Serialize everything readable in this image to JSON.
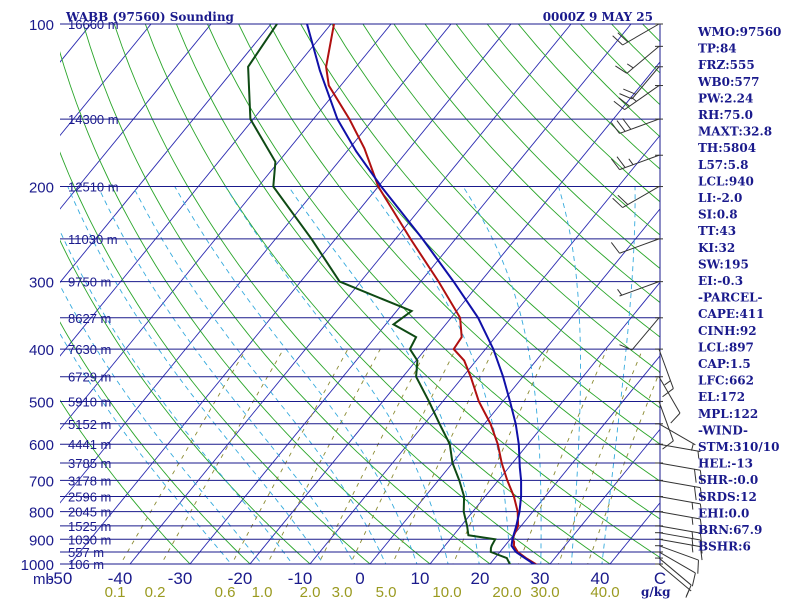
{
  "header": {
    "station": "WABB (97560) Sounding",
    "time": "0000Z  9 MAY 25"
  },
  "units": {
    "pressure": "mb",
    "mixing_ratio": "g/kg"
  },
  "pressure_ticks": [
    "100",
    "200",
    "300",
    "400",
    "500",
    "600",
    "700",
    "800",
    "900",
    "1000"
  ],
  "mixing_labels": [
    "0.1",
    "0.2",
    "0.6",
    "1.0",
    "2.0",
    "3.0",
    "5.0",
    "10.0",
    "20.0",
    "30.0",
    "40.0"
  ],
  "indices": [
    "WMO:97560",
    "TP:84",
    "FRZ:555",
    "WB0:577",
    "PW:2.24",
    "RH:75.0",
    "MAXT:32.8",
    "TH:5804",
    "L57:5.8",
    "LCL:940",
    "LI:-2.0",
    "SI:0.8",
    "TT:43",
    "KI:32",
    "SW:195",
    "EI:-0.3",
    "-PARCEL-",
    "CAPE:411",
    "CINH:92",
    "LCL:897",
    "CAP:1.5",
    "LFC:662",
    "EL:172",
    "MPL:122",
    "-WIND-",
    "STM:310/10",
    "HEL:-13",
    "SHR-:0.0",
    "SRDS:12",
    "EHI:0.0",
    "BRN:67.9",
    "BSHR:6"
  ],
  "chart_data": {
    "type": "line",
    "title": "WABB (97560) Sounding",
    "subtitle": "0000Z  9 MAY 25",
    "xlabel": "",
    "ylabel": "mb",
    "x_scale": "skew-T",
    "y_scale": "log",
    "xlim": [
      -50,
      50
    ],
    "ylim": [
      1000,
      100
    ],
    "x_ticks": [
      "-50",
      "-40",
      "-30",
      "-20",
      "-10",
      "0",
      "10",
      "20",
      "30",
      "40",
      "C"
    ],
    "height_labels": [
      {
        "p": 100,
        "label": "16660 m"
      },
      {
        "p": 150,
        "label": "14300 m"
      },
      {
        "p": 200,
        "label": "12510 m"
      },
      {
        "p": 250,
        "label": "11030 m"
      },
      {
        "p": 300,
        "label": "9750 m"
      },
      {
        "p": 350,
        "label": "8627 m"
      },
      {
        "p": 400,
        "label": "7630 m"
      },
      {
        "p": 450,
        "label": "6729 m"
      },
      {
        "p": 500,
        "label": "5910 m"
      },
      {
        "p": 550,
        "label": "5152 m"
      },
      {
        "p": 600,
        "label": "4441 m"
      },
      {
        "p": 650,
        "label": "3785 m"
      },
      {
        "p": 700,
        "label": "3178 m"
      },
      {
        "p": 750,
        "label": "2596 m"
      },
      {
        "p": 800,
        "label": "2045 m"
      },
      {
        "p": 850,
        "label": "1525 m"
      },
      {
        "p": 900,
        "label": "1030 m"
      },
      {
        "p": 950,
        "label": "557 m"
      },
      {
        "p": 1000,
        "label": "106 m"
      }
    ],
    "series": [
      {
        "id": "temperature",
        "color": "#b01010",
        "points": [
          [
            1008,
            28.4
          ],
          [
            1000,
            27.6
          ],
          [
            975,
            25.2
          ],
          [
            950,
            23.0
          ],
          [
            925,
            21.5
          ],
          [
            910,
            21.0
          ],
          [
            900,
            20.4
          ],
          [
            880,
            20.0
          ],
          [
            850,
            19.5
          ],
          [
            800,
            17.5
          ],
          [
            750,
            14.8
          ],
          [
            700,
            11.5
          ],
          [
            650,
            8.2
          ],
          [
            600,
            5.0
          ],
          [
            550,
            1.0
          ],
          [
            500,
            -4.0
          ],
          [
            450,
            -8.7
          ],
          [
            420,
            -12.0
          ],
          [
            400,
            -15.3
          ],
          [
            380,
            -15.6
          ],
          [
            350,
            -18.5
          ],
          [
            300,
            -27.0
          ],
          [
            250,
            -37.5
          ],
          [
            200,
            -50.0
          ],
          [
            170,
            -57.5
          ],
          [
            150,
            -64.0
          ],
          [
            130,
            -72.0
          ],
          [
            120,
            -75.0
          ],
          [
            100,
            -79.5
          ]
        ]
      },
      {
        "id": "dewpoint",
        "color": "#0e4a14",
        "points": [
          [
            1008,
            24.0
          ],
          [
            1000,
            23.3
          ],
          [
            975,
            22.0
          ],
          [
            950,
            18.5
          ],
          [
            935,
            18.0
          ],
          [
            925,
            17.8
          ],
          [
            900,
            17.5
          ],
          [
            885,
            12.5
          ],
          [
            850,
            11.0
          ],
          [
            800,
            8.5
          ],
          [
            750,
            6.5
          ],
          [
            700,
            3.5
          ],
          [
            650,
            0.0
          ],
          [
            600,
            -3.0
          ],
          [
            550,
            -7.5
          ],
          [
            500,
            -12.3
          ],
          [
            450,
            -17.8
          ],
          [
            420,
            -19.8
          ],
          [
            400,
            -22.6
          ],
          [
            380,
            -23.2
          ],
          [
            360,
            -28.7
          ],
          [
            340,
            -27.5
          ],
          [
            300,
            -43.5
          ],
          [
            250,
            -54.0
          ],
          [
            200,
            -67.5
          ],
          [
            180,
            -70.5
          ],
          [
            150,
            -80.5
          ],
          [
            120,
            -88.0
          ],
          [
            100,
            -89.0
          ]
        ]
      },
      {
        "id": "parcel",
        "color": "#1010a8",
        "points": [
          [
            1008,
            28.4
          ],
          [
            1000,
            27.3
          ],
          [
            975,
            25.0
          ],
          [
            950,
            22.7
          ],
          [
            925,
            21.1
          ],
          [
            897,
            20.3
          ],
          [
            850,
            19.2
          ],
          [
            800,
            17.8
          ],
          [
            750,
            16.0
          ],
          [
            700,
            13.8
          ],
          [
            662,
            11.8
          ],
          [
            600,
            8.5
          ],
          [
            550,
            5.2
          ],
          [
            500,
            1.2
          ],
          [
            450,
            -3.3
          ],
          [
            400,
            -8.7
          ],
          [
            350,
            -15.5
          ],
          [
            300,
            -24.5
          ],
          [
            250,
            -35.5
          ],
          [
            200,
            -49.5
          ],
          [
            172,
            -58.5
          ],
          [
            150,
            -66.0
          ],
          [
            122,
            -75.5
          ],
          [
            100,
            -84.0
          ]
        ]
      }
    ],
    "winds": [
      {
        "p": 1000,
        "dir": 130,
        "spd": 5
      },
      {
        "p": 975,
        "dir": 130,
        "spd": 10
      },
      {
        "p": 950,
        "dir": 120,
        "spd": 10
      },
      {
        "p": 925,
        "dir": 110,
        "spd": 10
      },
      {
        "p": 900,
        "dir": 100,
        "spd": 15
      },
      {
        "p": 875,
        "dir": 100,
        "spd": 15
      },
      {
        "p": 850,
        "dir": 100,
        "spd": 15
      },
      {
        "p": 800,
        "dir": 100,
        "spd": 15
      },
      {
        "p": 750,
        "dir": 100,
        "spd": 15
      },
      {
        "p": 700,
        "dir": 100,
        "spd": 20
      },
      {
        "p": 650,
        "dir": 100,
        "spd": 20
      },
      {
        "p": 600,
        "dir": 100,
        "spd": 5
      },
      {
        "p": 550,
        "dir": 120,
        "spd": 5
      },
      {
        "p": 500,
        "dir": 160,
        "spd": 10
      },
      {
        "p": 450,
        "dir": 150,
        "spd": 10
      },
      {
        "p": 400,
        "dir": 160,
        "spd": 15
      },
      {
        "p": 350,
        "dir": 220,
        "spd": 10
      },
      {
        "p": 300,
        "dir": 250,
        "spd": 5
      },
      {
        "p": 250,
        "dir": 250,
        "spd": 10
      },
      {
        "p": 200,
        "dir": 240,
        "spd": 20
      },
      {
        "p": 175,
        "dir": 250,
        "spd": 25
      },
      {
        "p": 150,
        "dir": 250,
        "spd": 30
      },
      {
        "p": 130,
        "dir": 235,
        "spd": 25
      },
      {
        "p": 120,
        "dir": 220,
        "spd": 20
      },
      {
        "p": 110,
        "dir": 230,
        "spd": 15
      },
      {
        "p": 100,
        "dir": 240,
        "spd": 20
      }
    ]
  }
}
